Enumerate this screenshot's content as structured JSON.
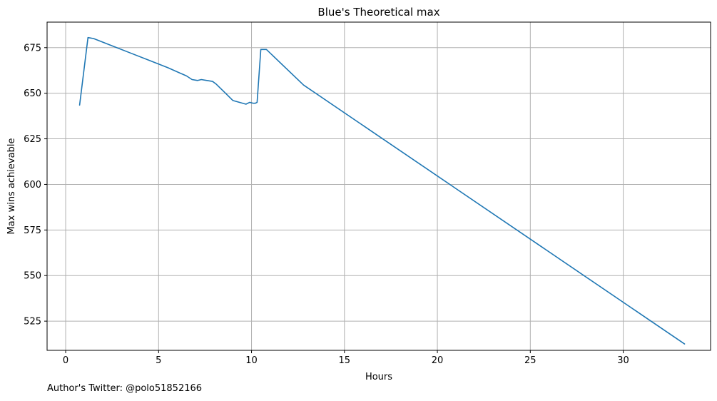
{
  "chart_data": {
    "type": "line",
    "title": "Blue's Theoretical max",
    "xlabel": "Hours",
    "ylabel": "Max wins achievable",
    "xlim": [
      -1,
      34.7
    ],
    "ylim": [
      509,
      689
    ],
    "xticks": [
      0,
      5,
      10,
      15,
      20,
      25,
      30
    ],
    "yticks": [
      525,
      550,
      575,
      600,
      625,
      650,
      675
    ],
    "grid": true,
    "series": [
      {
        "color": "#1f77b4",
        "x": [
          0.75,
          1.2,
          1.5,
          2.5,
          3.5,
          4.5,
          5.5,
          6.5,
          6.8,
          7.1,
          7.3,
          7.6,
          7.9,
          8.1,
          8.5,
          9.0,
          9.7,
          9.9,
          10.1,
          10.2,
          10.3,
          10.5,
          10.6,
          10.8,
          12.8,
          33.3
        ],
        "y": [
          643.5,
          680.5,
          680,
          676,
          672,
          668,
          664,
          659.5,
          657.5,
          657,
          657.5,
          657,
          656.5,
          655,
          651,
          646,
          644,
          645,
          644.5,
          644.5,
          645,
          674,
          674,
          674,
          654.5,
          512.5
        ]
      }
    ]
  },
  "footer": {
    "credit": "Author's Twitter: @polo51852166"
  }
}
